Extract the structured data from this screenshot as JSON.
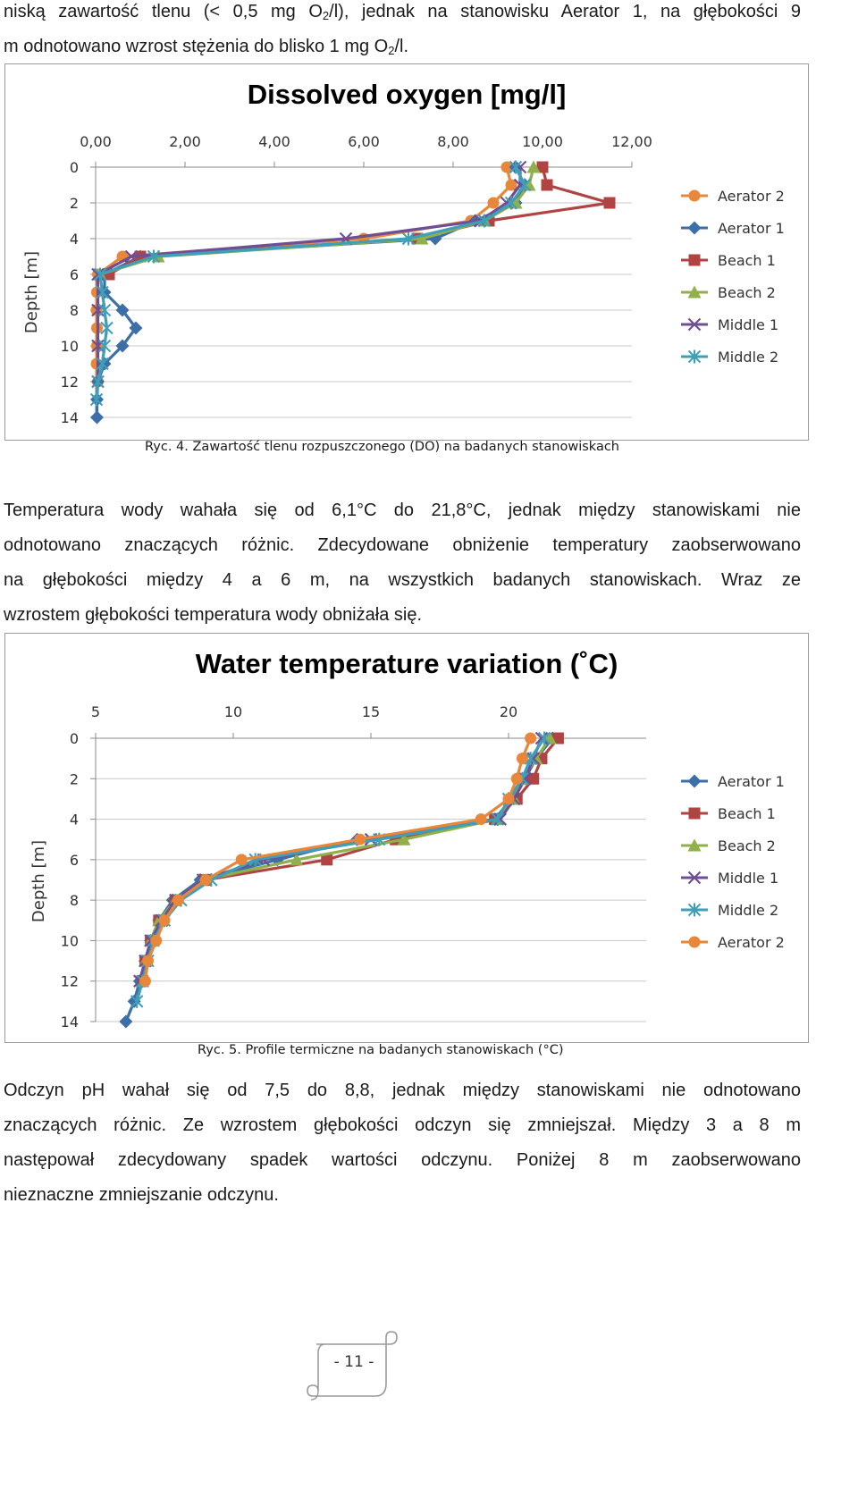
{
  "text": {
    "para_top_line1": "niską zawartość tlenu (< 0,5 mg O",
    "sub_o2": "2",
    "para_top_line1_b": "/l), jednak na stanowisku Aerator 1, na głębokości 9",
    "para_top_line2": "m odnotowano wzrost stężenia do blisko 1 mg O",
    "para_top_line2_b": "/l.",
    "para_mid": [
      "Temperatura wody wahała się od 6,1°C do 21,8°C, jednak między stanowiskami nie",
      "odnotowano znaczących różnic. Zdecydowane obniżenie temperatury zaobserwowano",
      "na głębokości między 4 a 6 m, na wszystkich badanych stanowiskach. Wraz ze",
      "wzrostem głębokości temperatura wody obniżała się."
    ],
    "para_bottom": [
      "Odczyn pH wahał się od 7,5 do 8,8, jednak między stanowiskami nie odnotowano",
      "znaczących różnic. Ze wzrostem głębokości odczyn się zmniejszał. Między 3 a 8 m",
      "następował zdecydowany spadek wartości odczynu. Poniżej 8 m zaobserwowano",
      "nieznaczne zmniejszanie odczynu."
    ],
    "caption_do": "Ryc. 4. Zawartość tlenu rozpuszczonego (DO) na badanych stanowiskach",
    "caption_temp": "Ryc. 5. Profile termiczne na badanych stanowiskach (°C)",
    "page_number": "- 11 -"
  },
  "chart_data": [
    {
      "type": "line",
      "title": "Dissolved oxygen [mg/l]",
      "xlabel": "",
      "ylabel": "Depth [m]",
      "xlim": [
        0,
        12
      ],
      "ylim": [
        0,
        14
      ],
      "x_ticks": [
        "0,00",
        "2,00",
        "4,00",
        "6,00",
        "8,00",
        "10,00",
        "12,00"
      ],
      "x_tick_values": [
        0,
        2,
        4,
        6,
        8,
        10,
        12
      ],
      "y_ticks": [
        "0",
        "2",
        "4",
        "6",
        "8",
        "10",
        "12",
        "14"
      ],
      "y_tick_values": [
        0,
        2,
        4,
        6,
        8,
        10,
        12,
        14
      ],
      "y_inverted": true,
      "x_axis_position": "top",
      "grid": "horizontal",
      "legend_position": "right",
      "series": [
        {
          "name": "Aerator 2",
          "color": "#e8873a",
          "marker": "circle",
          "points": [
            [
              9.2,
              0
            ],
            [
              9.3,
              1
            ],
            [
              8.9,
              2
            ],
            [
              8.4,
              3
            ],
            [
              6.0,
              4
            ],
            [
              0.6,
              5
            ],
            [
              0.05,
              6
            ],
            [
              0.03,
              7
            ],
            [
              0.02,
              8
            ],
            [
              0.03,
              9
            ],
            [
              0.03,
              10
            ],
            [
              0.02,
              11
            ],
            [
              0.05,
              12
            ]
          ]
        },
        {
          "name": "Aerator 1",
          "color": "#3c6ea8",
          "marker": "diamond",
          "points": [
            [
              9.4,
              0
            ],
            [
              9.6,
              1
            ],
            [
              9.4,
              2
            ],
            [
              8.5,
              3
            ],
            [
              7.6,
              4
            ],
            [
              1.0,
              5
            ],
            [
              0.2,
              6
            ],
            [
              0.2,
              7
            ],
            [
              0.6,
              8
            ],
            [
              0.9,
              9
            ],
            [
              0.6,
              10
            ],
            [
              0.2,
              11
            ],
            [
              0.05,
              12
            ],
            [
              0.03,
              13
            ],
            [
              0.03,
              14
            ]
          ]
        },
        {
          "name": "Beach 1",
          "color": "#b04443",
          "marker": "square",
          "points": [
            [
              10.0,
              0
            ],
            [
              10.1,
              1
            ],
            [
              11.5,
              2
            ],
            [
              8.8,
              3
            ],
            [
              7.2,
              4
            ],
            [
              1.0,
              5
            ],
            [
              0.3,
              6
            ]
          ]
        },
        {
          "name": "Beach 2",
          "color": "#8fb04a",
          "marker": "triangle",
          "points": [
            [
              9.8,
              0
            ],
            [
              9.7,
              1
            ],
            [
              9.4,
              2
            ],
            [
              8.7,
              3
            ],
            [
              7.3,
              4
            ],
            [
              1.4,
              5
            ],
            [
              0.1,
              6
            ]
          ]
        },
        {
          "name": "Middle 1",
          "color": "#6f4f94",
          "marker": "x",
          "points": [
            [
              9.5,
              0
            ],
            [
              9.5,
              1
            ],
            [
              9.2,
              2
            ],
            [
              8.6,
              3
            ],
            [
              5.6,
              4
            ],
            [
              0.8,
              5
            ],
            [
              0.05,
              6
            ],
            [
              0.05,
              8
            ],
            [
              0.05,
              10
            ],
            [
              0.05,
              12
            ]
          ]
        },
        {
          "name": "Middle 2",
          "color": "#3f9fb8",
          "marker": "star",
          "points": [
            [
              9.4,
              0
            ],
            [
              9.6,
              1
            ],
            [
              9.3,
              2
            ],
            [
              8.7,
              3
            ],
            [
              7.0,
              4
            ],
            [
              1.3,
              5
            ],
            [
              0.1,
              6
            ],
            [
              0.15,
              7
            ],
            [
              0.2,
              8
            ],
            [
              0.25,
              9
            ],
            [
              0.2,
              10
            ],
            [
              0.15,
              11
            ],
            [
              0.05,
              12
            ],
            [
              0.02,
              13
            ]
          ]
        }
      ]
    },
    {
      "type": "line",
      "title": "Water temperature variation (˚C)",
      "xlabel": "",
      "ylabel": "Depth [m]",
      "xlim": [
        5,
        25
      ],
      "ylim": [
        0,
        14
      ],
      "x_ticks": [
        "5",
        "10",
        "15",
        "20"
      ],
      "x_tick_values": [
        5,
        10,
        15,
        20
      ],
      "y_ticks": [
        "0",
        "2",
        "4",
        "6",
        "8",
        "10",
        "12",
        "14"
      ],
      "y_tick_values": [
        0,
        2,
        4,
        6,
        8,
        10,
        12,
        14
      ],
      "y_inverted": true,
      "x_axis_position": "top",
      "grid": "horizontal",
      "legend_position": "right",
      "series": [
        {
          "name": "Aerator 1",
          "color": "#3c6ea8",
          "marker": "diamond",
          "points": [
            [
              21.6,
              0
            ],
            [
              21.0,
              1
            ],
            [
              20.6,
              2
            ],
            [
              20.1,
              3
            ],
            [
              19.5,
              4
            ],
            [
              14.5,
              5
            ],
            [
              11.6,
              6
            ],
            [
              8.8,
              7
            ],
            [
              7.8,
              8
            ],
            [
              7.3,
              9
            ],
            [
              7.0,
              10
            ],
            [
              6.8,
              11
            ],
            [
              6.6,
              12
            ],
            [
              6.4,
              13
            ],
            [
              6.1,
              14
            ]
          ]
        },
        {
          "name": "Beach 1",
          "color": "#b04443",
          "marker": "square",
          "points": [
            [
              21.8,
              0
            ],
            [
              21.2,
              1
            ],
            [
              20.9,
              2
            ],
            [
              20.3,
              3
            ],
            [
              19.5,
              4
            ],
            [
              15.9,
              5
            ],
            [
              13.4,
              6
            ],
            [
              9.0,
              7
            ],
            [
              7.9,
              8
            ],
            [
              7.3,
              9
            ],
            [
              7.0,
              10
            ],
            [
              6.8,
              11
            ],
            [
              6.7,
              12
            ]
          ]
        },
        {
          "name": "Beach 2",
          "color": "#8fb04a",
          "marker": "triangle",
          "points": [
            [
              21.5,
              0
            ],
            [
              21.0,
              1
            ],
            [
              20.5,
              2
            ],
            [
              20.2,
              3
            ],
            [
              19.6,
              4
            ],
            [
              16.2,
              5
            ],
            [
              12.3,
              6
            ],
            [
              8.9,
              7
            ],
            [
              7.9,
              8
            ],
            [
              7.3,
              9
            ],
            [
              7.0,
              10
            ],
            [
              6.8,
              11
            ],
            [
              6.7,
              12
            ]
          ]
        },
        {
          "name": "Middle 1",
          "color": "#6f4f94",
          "marker": "x",
          "points": [
            [
              21.2,
              0
            ],
            [
              20.9,
              1
            ],
            [
              20.6,
              2
            ],
            [
              20.2,
              3
            ],
            [
              19.7,
              4
            ],
            [
              15.0,
              5
            ],
            [
              11.1,
              6
            ],
            [
              8.9,
              7
            ],
            [
              7.9,
              8
            ],
            [
              7.4,
              9
            ],
            [
              7.0,
              10
            ],
            [
              6.8,
              11
            ],
            [
              6.6,
              12
            ]
          ]
        },
        {
          "name": "Middle 2",
          "color": "#3f9fb8",
          "marker": "star",
          "points": [
            [
              21.3,
              0
            ],
            [
              20.8,
              1
            ],
            [
              20.5,
              2
            ],
            [
              20.0,
              3
            ],
            [
              19.6,
              4
            ],
            [
              15.3,
              5
            ],
            [
              10.8,
              6
            ],
            [
              9.2,
              7
            ],
            [
              8.1,
              8
            ],
            [
              7.5,
              9
            ],
            [
              7.1,
              10
            ],
            [
              6.9,
              11
            ],
            [
              6.7,
              12
            ],
            [
              6.5,
              13
            ]
          ]
        },
        {
          "name": "Aerator 2",
          "color": "#e8873a",
          "marker": "circle",
          "points": [
            [
              20.8,
              0
            ],
            [
              20.5,
              1
            ],
            [
              20.3,
              2
            ],
            [
              20.0,
              3
            ],
            [
              19.0,
              4
            ],
            [
              14.6,
              5
            ],
            [
              10.3,
              6
            ],
            [
              9.0,
              7
            ],
            [
              8.0,
              8
            ],
            [
              7.5,
              9
            ],
            [
              7.2,
              10
            ],
            [
              6.9,
              11
            ],
            [
              6.8,
              12
            ]
          ]
        }
      ]
    }
  ]
}
